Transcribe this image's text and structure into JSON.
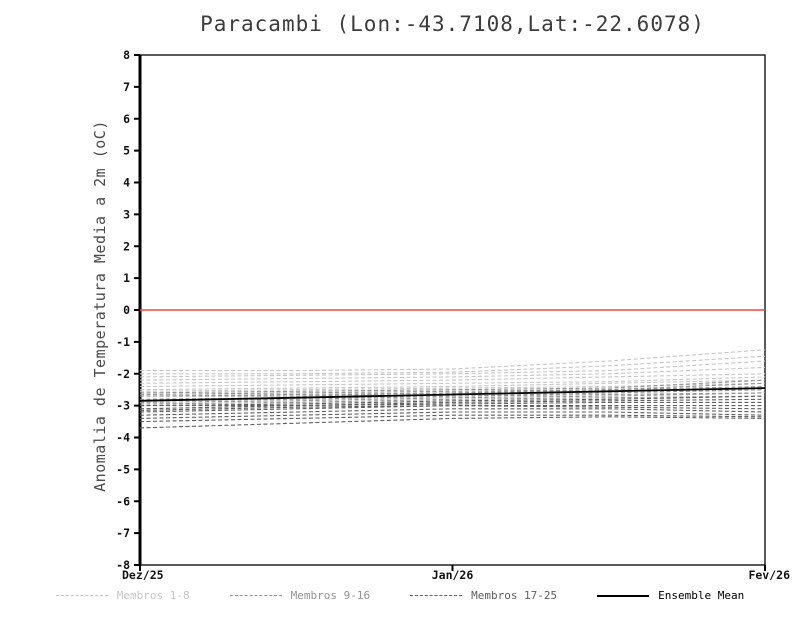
{
  "chart_data": {
    "type": "line",
    "title": "Paracambi (Lon:-43.7108,Lat:-22.6078)",
    "ylabel": "Anomalia de Temperatura Media a 2m (oC)",
    "x_tick_labels": [
      "Dez/25",
      "Jan/26",
      "Fev/26"
    ],
    "ylim": [
      -8,
      8
    ],
    "y_tick_step": 1,
    "grid": false,
    "legend_position": "bottom",
    "zero_line": {
      "y": 0,
      "color": "#f84545"
    },
    "groups": [
      {
        "name": "Membros 1-8",
        "color": "#c6c6c6",
        "style": "dashed",
        "members": [
          [
            -1.9,
            -1.9,
            -1.85,
            -1.6,
            -1.25
          ],
          [
            -2.0,
            -2.0,
            -1.95,
            -1.75,
            -1.45
          ],
          [
            -2.1,
            -2.05,
            -2.0,
            -1.9,
            -1.6
          ],
          [
            -2.2,
            -2.15,
            -2.1,
            -2.0,
            -1.8
          ],
          [
            -2.3,
            -2.25,
            -2.2,
            -2.1,
            -2.0
          ],
          [
            -2.4,
            -2.35,
            -2.3,
            -2.25,
            -2.1
          ],
          [
            -2.5,
            -2.45,
            -2.4,
            -2.3,
            -2.2
          ],
          [
            -2.55,
            -2.5,
            -2.45,
            -2.4,
            -2.3
          ]
        ]
      },
      {
        "name": "Membros 9-16",
        "color": "#949494",
        "style": "dashed",
        "members": [
          [
            -2.6,
            -2.55,
            -2.5,
            -2.45,
            -2.2
          ],
          [
            -2.65,
            -2.6,
            -2.55,
            -2.5,
            -2.4
          ],
          [
            -2.7,
            -2.65,
            -2.6,
            -2.5,
            -2.3
          ],
          [
            -2.7,
            -2.7,
            -2.6,
            -2.55,
            -2.5
          ],
          [
            -2.8,
            -2.75,
            -2.7,
            -2.6,
            -2.5
          ],
          [
            -2.85,
            -2.8,
            -2.7,
            -2.65,
            -2.6
          ],
          [
            -2.9,
            -2.85,
            -2.75,
            -2.7,
            -2.6
          ],
          [
            -2.95,
            -2.9,
            -2.8,
            -2.75,
            -2.7
          ]
        ]
      },
      {
        "name": "Membros 17-25",
        "color": "#5e5e5e",
        "style": "dashed",
        "members": [
          [
            -3.0,
            -2.95,
            -2.85,
            -2.8,
            -2.7
          ],
          [
            -3.0,
            -3.0,
            -2.9,
            -2.85,
            -2.8
          ],
          [
            -3.1,
            -3.0,
            -2.95,
            -2.9,
            -2.9
          ],
          [
            -3.15,
            -3.05,
            -3.0,
            -3.0,
            -3.0
          ],
          [
            -3.2,
            -3.1,
            -3.0,
            -3.05,
            -3.1
          ],
          [
            -3.3,
            -3.2,
            -3.1,
            -3.1,
            -3.2
          ],
          [
            -3.4,
            -3.3,
            -3.2,
            -3.2,
            -3.3
          ],
          [
            -3.5,
            -3.4,
            -3.3,
            -3.3,
            -3.35
          ],
          [
            -3.7,
            -3.55,
            -3.4,
            -3.35,
            -3.4
          ]
        ]
      }
    ],
    "mean": {
      "name": "Ensemble Mean",
      "color": "#000000",
      "style": "solid",
      "values": [
        -2.85,
        -2.75,
        -2.65,
        -2.55,
        -2.45
      ]
    }
  }
}
